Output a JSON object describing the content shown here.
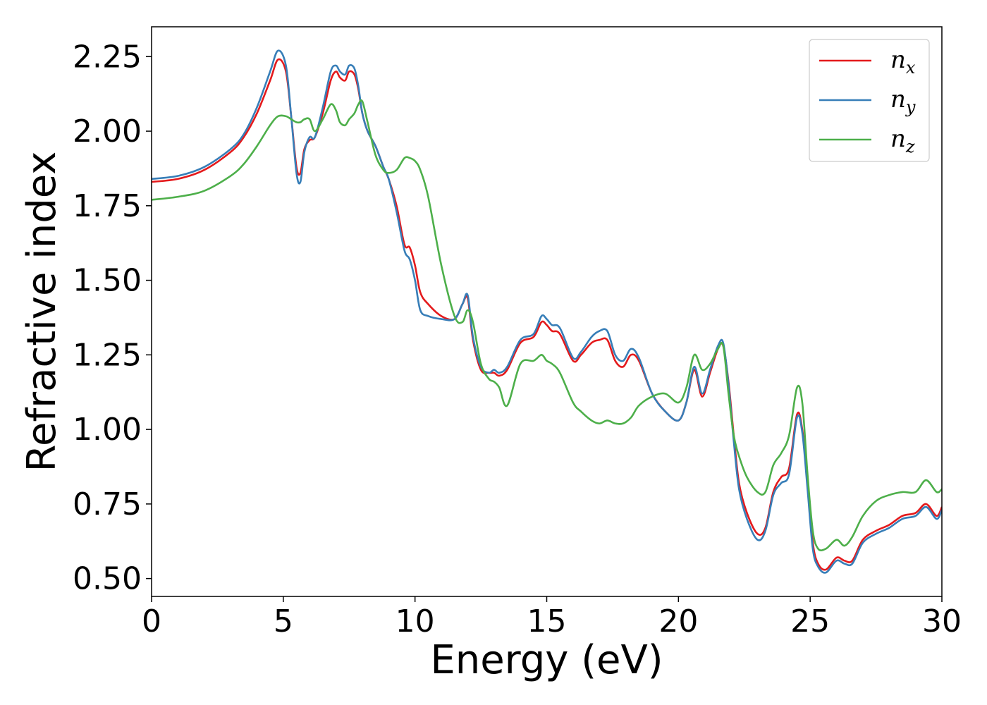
{
  "chart_data": {
    "type": "line",
    "xlabel": "Energy (eV)",
    "ylabel": "Refractive index",
    "xlim": [
      0,
      30
    ],
    "ylim": [
      0.44,
      2.35
    ],
    "xticks": [
      "0",
      "5",
      "10",
      "15",
      "20",
      "25",
      "30"
    ],
    "yticks": [
      "0.50",
      "0.75",
      "1.00",
      "1.25",
      "1.50",
      "1.75",
      "2.00",
      "2.25"
    ],
    "grid": false,
    "legend_position": "top-right",
    "series": [
      {
        "name": "n_x",
        "legend_base": "n",
        "legend_sub": "x",
        "color": "#e41a1c",
        "x": [
          0,
          1,
          2,
          3,
          3.5,
          4,
          4.5,
          4.8,
          5.1,
          5.3,
          5.5,
          5.65,
          5.8,
          6.0,
          6.2,
          6.5,
          6.8,
          7.0,
          7.15,
          7.35,
          7.5,
          7.7,
          7.85,
          8.0,
          8.2,
          8.5,
          8.8,
          9.0,
          9.3,
          9.6,
          9.8,
          10.0,
          10.2,
          10.5,
          11.0,
          11.5,
          11.8,
          12.0,
          12.2,
          12.5,
          12.8,
          13.0,
          13.2,
          13.5,
          14.0,
          14.5,
          14.8,
          15.0,
          15.2,
          15.5,
          16.0,
          16.3,
          16.7,
          17.0,
          17.3,
          17.6,
          17.9,
          18.2,
          18.5,
          19.0,
          19.5,
          20.0,
          20.3,
          20.6,
          20.9,
          21.2,
          21.5,
          21.7,
          21.9,
          22.1,
          22.3,
          22.6,
          23.0,
          23.3,
          23.6,
          23.9,
          24.2,
          24.5,
          24.7,
          24.9,
          25.1,
          25.3,
          25.6,
          26.0,
          26.3,
          26.6,
          27.0,
          27.5,
          28.0,
          28.5,
          29.0,
          29.4,
          29.8,
          30.0
        ],
        "y": [
          1.83,
          1.84,
          1.87,
          1.93,
          1.98,
          2.06,
          2.17,
          2.24,
          2.2,
          2.05,
          1.88,
          1.86,
          1.94,
          1.97,
          1.98,
          2.06,
          2.17,
          2.2,
          2.18,
          2.17,
          2.2,
          2.19,
          2.14,
          2.06,
          2.0,
          1.95,
          1.88,
          1.84,
          1.75,
          1.62,
          1.61,
          1.55,
          1.46,
          1.42,
          1.38,
          1.37,
          1.42,
          1.44,
          1.3,
          1.2,
          1.19,
          1.19,
          1.18,
          1.2,
          1.29,
          1.31,
          1.36,
          1.35,
          1.33,
          1.32,
          1.23,
          1.25,
          1.29,
          1.3,
          1.3,
          1.23,
          1.21,
          1.25,
          1.23,
          1.12,
          1.06,
          1.03,
          1.09,
          1.2,
          1.11,
          1.19,
          1.27,
          1.28,
          1.16,
          0.98,
          0.82,
          0.72,
          0.65,
          0.67,
          0.79,
          0.84,
          0.87,
          1.05,
          1.0,
          0.82,
          0.62,
          0.55,
          0.53,
          0.57,
          0.56,
          0.56,
          0.63,
          0.66,
          0.68,
          0.71,
          0.72,
          0.75,
          0.71,
          0.74
        ]
      },
      {
        "name": "n_y",
        "legend_base": "n",
        "legend_sub": "y",
        "color": "#377eb8",
        "x": [
          0,
          1,
          2,
          3,
          3.5,
          4,
          4.5,
          4.8,
          5.1,
          5.3,
          5.5,
          5.65,
          5.8,
          6.0,
          6.2,
          6.5,
          6.8,
          7.0,
          7.15,
          7.35,
          7.5,
          7.7,
          7.85,
          8.0,
          8.2,
          8.5,
          8.8,
          9.0,
          9.3,
          9.6,
          9.8,
          10.0,
          10.2,
          10.5,
          11.0,
          11.5,
          11.8,
          12.0,
          12.2,
          12.5,
          12.8,
          13.0,
          13.2,
          13.5,
          14.0,
          14.5,
          14.8,
          15.0,
          15.2,
          15.5,
          16.0,
          16.3,
          16.7,
          17.0,
          17.3,
          17.6,
          17.9,
          18.2,
          18.5,
          19.0,
          19.5,
          20.0,
          20.3,
          20.6,
          20.9,
          21.2,
          21.5,
          21.7,
          21.9,
          22.1,
          22.3,
          22.6,
          23.0,
          23.3,
          23.6,
          23.9,
          24.2,
          24.5,
          24.7,
          24.9,
          25.1,
          25.3,
          25.6,
          26.0,
          26.3,
          26.6,
          27.0,
          27.5,
          28.0,
          28.5,
          29.0,
          29.4,
          29.8,
          30.0
        ],
        "y": [
          1.84,
          1.85,
          1.88,
          1.94,
          1.99,
          2.08,
          2.2,
          2.27,
          2.22,
          2.05,
          1.86,
          1.83,
          1.93,
          1.98,
          1.98,
          2.08,
          2.2,
          2.22,
          2.2,
          2.19,
          2.22,
          2.21,
          2.15,
          2.06,
          2.0,
          1.95,
          1.88,
          1.84,
          1.73,
          1.6,
          1.57,
          1.5,
          1.4,
          1.38,
          1.37,
          1.37,
          1.42,
          1.45,
          1.31,
          1.21,
          1.19,
          1.2,
          1.19,
          1.21,
          1.3,
          1.32,
          1.38,
          1.37,
          1.35,
          1.34,
          1.24,
          1.26,
          1.31,
          1.33,
          1.33,
          1.25,
          1.23,
          1.27,
          1.24,
          1.12,
          1.06,
          1.03,
          1.09,
          1.21,
          1.12,
          1.2,
          1.28,
          1.29,
          1.15,
          0.96,
          0.8,
          0.7,
          0.63,
          0.66,
          0.78,
          0.82,
          0.85,
          1.04,
          0.99,
          0.8,
          0.6,
          0.54,
          0.52,
          0.56,
          0.55,
          0.55,
          0.62,
          0.65,
          0.67,
          0.7,
          0.71,
          0.74,
          0.7,
          0.73
        ]
      },
      {
        "name": "n_z",
        "legend_base": "n",
        "legend_sub": "z",
        "color": "#4daf4a",
        "x": [
          0,
          1,
          2,
          3,
          3.5,
          4,
          4.5,
          4.8,
          5.1,
          5.3,
          5.5,
          5.65,
          5.8,
          6.0,
          6.2,
          6.5,
          6.8,
          7.0,
          7.15,
          7.35,
          7.5,
          7.7,
          7.85,
          8.0,
          8.2,
          8.5,
          8.8,
          9.0,
          9.3,
          9.6,
          9.8,
          10.0,
          10.2,
          10.5,
          11.0,
          11.5,
          11.8,
          12.0,
          12.2,
          12.5,
          12.8,
          13.0,
          13.2,
          13.5,
          14.0,
          14.5,
          14.8,
          15.0,
          15.2,
          15.5,
          16.0,
          16.3,
          16.7,
          17.0,
          17.3,
          17.6,
          17.9,
          18.2,
          18.5,
          19.0,
          19.5,
          20.0,
          20.3,
          20.6,
          20.9,
          21.2,
          21.5,
          21.7,
          21.9,
          22.1,
          22.3,
          22.6,
          23.0,
          23.3,
          23.6,
          23.9,
          24.2,
          24.5,
          24.7,
          24.9,
          25.1,
          25.3,
          25.6,
          26.0,
          26.3,
          26.6,
          27.0,
          27.5,
          28.0,
          28.5,
          29.0,
          29.4,
          29.8,
          30.0
        ],
        "y": [
          1.77,
          1.78,
          1.8,
          1.85,
          1.89,
          1.95,
          2.02,
          2.05,
          2.05,
          2.04,
          2.03,
          2.03,
          2.04,
          2.04,
          2.0,
          2.04,
          2.09,
          2.07,
          2.03,
          2.02,
          2.04,
          2.06,
          2.09,
          2.1,
          2.03,
          1.92,
          1.87,
          1.86,
          1.87,
          1.91,
          1.91,
          1.9,
          1.87,
          1.78,
          1.55,
          1.38,
          1.36,
          1.4,
          1.36,
          1.22,
          1.17,
          1.16,
          1.14,
          1.08,
          1.22,
          1.23,
          1.25,
          1.23,
          1.22,
          1.19,
          1.09,
          1.06,
          1.03,
          1.02,
          1.03,
          1.02,
          1.02,
          1.04,
          1.08,
          1.11,
          1.12,
          1.09,
          1.14,
          1.25,
          1.2,
          1.22,
          1.27,
          1.28,
          1.12,
          0.98,
          0.91,
          0.84,
          0.79,
          0.79,
          0.88,
          0.92,
          0.98,
          1.14,
          1.09,
          0.85,
          0.66,
          0.6,
          0.6,
          0.63,
          0.61,
          0.64,
          0.71,
          0.76,
          0.78,
          0.79,
          0.79,
          0.83,
          0.79,
          0.8
        ]
      }
    ]
  }
}
